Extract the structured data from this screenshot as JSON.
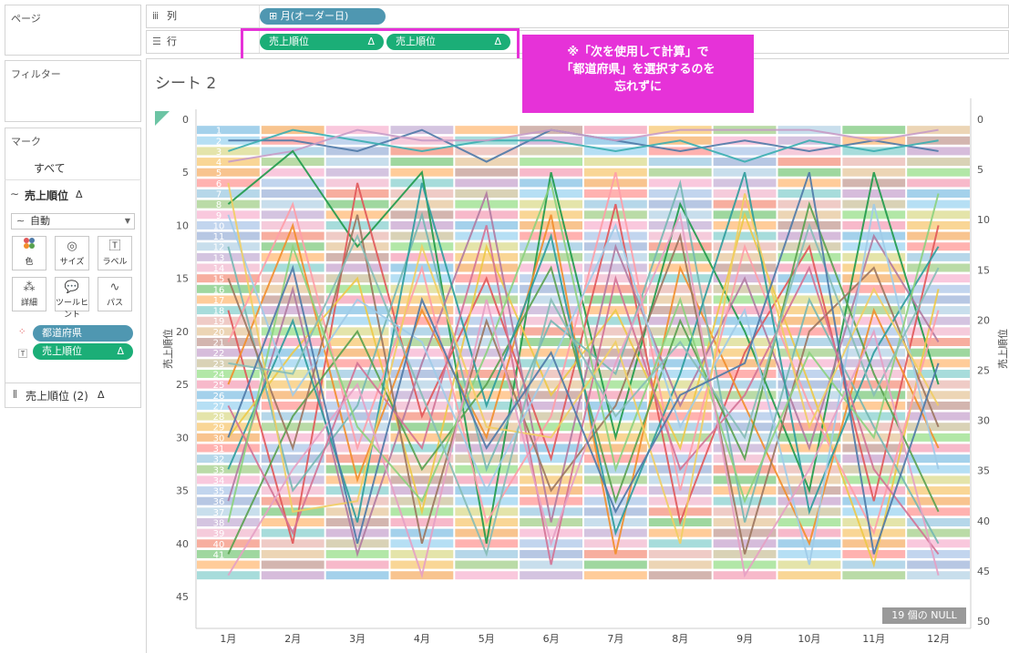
{
  "left_panel": {
    "pages_title": "ページ",
    "filters_title": "フィルター",
    "marks_title": "マーク",
    "all_label": "すべて",
    "measure_label": "売上順位",
    "delta": "Δ",
    "marktype_value": "自動",
    "buttons": [
      {
        "label": "色",
        "icon": "color-icon"
      },
      {
        "label": "サイズ",
        "icon": "size-icon"
      },
      {
        "label": "ラベル",
        "icon": "label-icon"
      },
      {
        "label": "詳細",
        "icon": "detail-icon"
      },
      {
        "label": "ツールヒント",
        "icon": "tooltip-icon"
      },
      {
        "label": "パス",
        "icon": "path-icon"
      }
    ],
    "mark_pills": [
      {
        "label": "都道府県",
        "color": "#4f97b1"
      },
      {
        "label": "売上順位",
        "color": "#1bae77"
      }
    ],
    "second_measure": "売上順位 (2)"
  },
  "shelves": {
    "columns_label": "列",
    "columns_pill": "月(オーダー日)",
    "rows_label": "行",
    "rows_pills": [
      "売上順位",
      "売上順位"
    ]
  },
  "sheet_title": "シート 2",
  "annotation": {
    "line1": "※「次を使用して計算」で",
    "line2": "「都道府県」を選択するのを",
    "line3": "忘れずに"
  },
  "null_badge": "19 個の NULL",
  "chart_data": {
    "type": "line",
    "ylabel_left": "売上順位",
    "ylabel_right": "売上順位",
    "y_axis_left": {
      "ticks": [
        0,
        5,
        10,
        15,
        20,
        25,
        30,
        35,
        40,
        45
      ],
      "reversed": true
    },
    "y_axis_right": {
      "ticks": [
        0,
        5,
        10,
        15,
        20,
        25,
        30,
        35,
        40,
        45,
        50
      ],
      "reversed": true
    },
    "x": [
      "1月",
      "2月",
      "3月",
      "4月",
      "5月",
      "6月",
      "7月",
      "8月",
      "9月",
      "10月",
      "11月",
      "12月"
    ],
    "series": [
      {
        "color": "#4e79a7",
        "values": [
          2,
          2,
          3,
          1,
          4,
          1,
          2,
          3,
          2,
          3,
          2,
          3
        ]
      },
      {
        "color": "#3aaeb0",
        "values": [
          3,
          1,
          2,
          3,
          2,
          2,
          3,
          2,
          4,
          2,
          3,
          2
        ]
      },
      {
        "color": "#c79bc6",
        "values": [
          4,
          3,
          1,
          2,
          2,
          1,
          2,
          1,
          1,
          1,
          2,
          1
        ]
      },
      {
        "color": "#1f9a4a",
        "values": [
          8,
          3,
          12,
          5,
          40,
          5,
          30,
          8,
          20,
          35,
          5,
          25
        ]
      },
      {
        "color": "#e15759",
        "values": [
          18,
          40,
          6,
          28,
          15,
          32,
          8,
          38,
          22,
          12,
          36,
          10
        ]
      },
      {
        "color": "#f28e2b",
        "values": [
          25,
          10,
          34,
          18,
          30,
          9,
          41,
          14,
          27,
          40,
          18,
          31
        ]
      },
      {
        "color": "#edc948",
        "values": [
          30,
          22,
          15,
          37,
          12,
          26,
          18,
          31,
          9,
          25,
          42,
          16
        ]
      },
      {
        "color": "#76b7b2",
        "values": [
          12,
          35,
          27,
          9,
          33,
          19,
          24,
          6,
          38,
          17,
          29,
          40
        ]
      },
      {
        "color": "#b07aa1",
        "values": [
          36,
          16,
          41,
          23,
          7,
          38,
          12,
          27,
          15,
          31,
          11,
          21
        ]
      },
      {
        "color": "#59a14f",
        "values": [
          41,
          28,
          20,
          33,
          25,
          14,
          36,
          19,
          32,
          8,
          24,
          37
        ]
      },
      {
        "color": "#ff9da7",
        "values": [
          21,
          8,
          31,
          14,
          38,
          28,
          5,
          35,
          12,
          27,
          39,
          18
        ]
      },
      {
        "color": "#9c755f",
        "values": [
          15,
          31,
          9,
          40,
          19,
          35,
          27,
          11,
          41,
          20,
          14,
          29
        ]
      },
      {
        "color": "#2c9c9c",
        "values": [
          33,
          19,
          38,
          6,
          27,
          11,
          39,
          24,
          5,
          37,
          22,
          12
        ]
      },
      {
        "color": "#d37295",
        "values": [
          27,
          39,
          23,
          31,
          10,
          42,
          15,
          33,
          26,
          14,
          33,
          41
        ]
      },
      {
        "color": "#a0cbe8",
        "values": [
          9,
          26,
          17,
          21,
          35,
          23,
          10,
          29,
          18,
          42,
          8,
          33
        ]
      },
      {
        "color": "#8cd17d",
        "values": [
          38,
          12,
          29,
          36,
          22,
          6,
          33,
          17,
          36,
          22,
          30,
          7
        ]
      },
      {
        "color": "#f1ce63",
        "values": [
          6,
          37,
          36,
          12,
          29,
          30,
          21,
          40,
          7,
          29,
          16,
          27
        ]
      },
      {
        "color": "#86bcb6",
        "values": [
          23,
          24,
          11,
          26,
          41,
          17,
          28,
          21,
          30,
          10,
          26,
          14
        ]
      },
      {
        "color": "#e6a0c4",
        "values": [
          43,
          33,
          25,
          43,
          17,
          40,
          23,
          9,
          43,
          33,
          20,
          43
        ]
      },
      {
        "color": "#4e79a7",
        "values": [
          30,
          14,
          40,
          17,
          31,
          22,
          37,
          26,
          23,
          5,
          41,
          23
        ]
      }
    ],
    "band_colors": [
      "#f4a1b8",
      "#89d0cf",
      "#9fb4da",
      "#f7c873",
      "#c8a6cf",
      "#f4937f",
      "#a3cf8a",
      "#86c1e4",
      "#e9b9b3",
      "#b6d3e6",
      "#f5b06a",
      "#ccc39d",
      "#7fc97f",
      "#f7b6d2",
      "#9dd4f0",
      "#e6c79c",
      "#c5b0d5",
      "#ff9896",
      "#98df8a",
      "#ffbb78",
      "#aec7e8",
      "#dbdb8d",
      "#c49c94",
      "#f2b9cf",
      "#9ecae1"
    ],
    "band_rank_labels": [
      1,
      2,
      3,
      4,
      5,
      6,
      7,
      8,
      9,
      10,
      11,
      12,
      13,
      14,
      15,
      16,
      17,
      18,
      19,
      20,
      21,
      22,
      23,
      24,
      25,
      26,
      27,
      28,
      29,
      30,
      31,
      32,
      33,
      34,
      35,
      36,
      37,
      38,
      39,
      40,
      41
    ]
  }
}
